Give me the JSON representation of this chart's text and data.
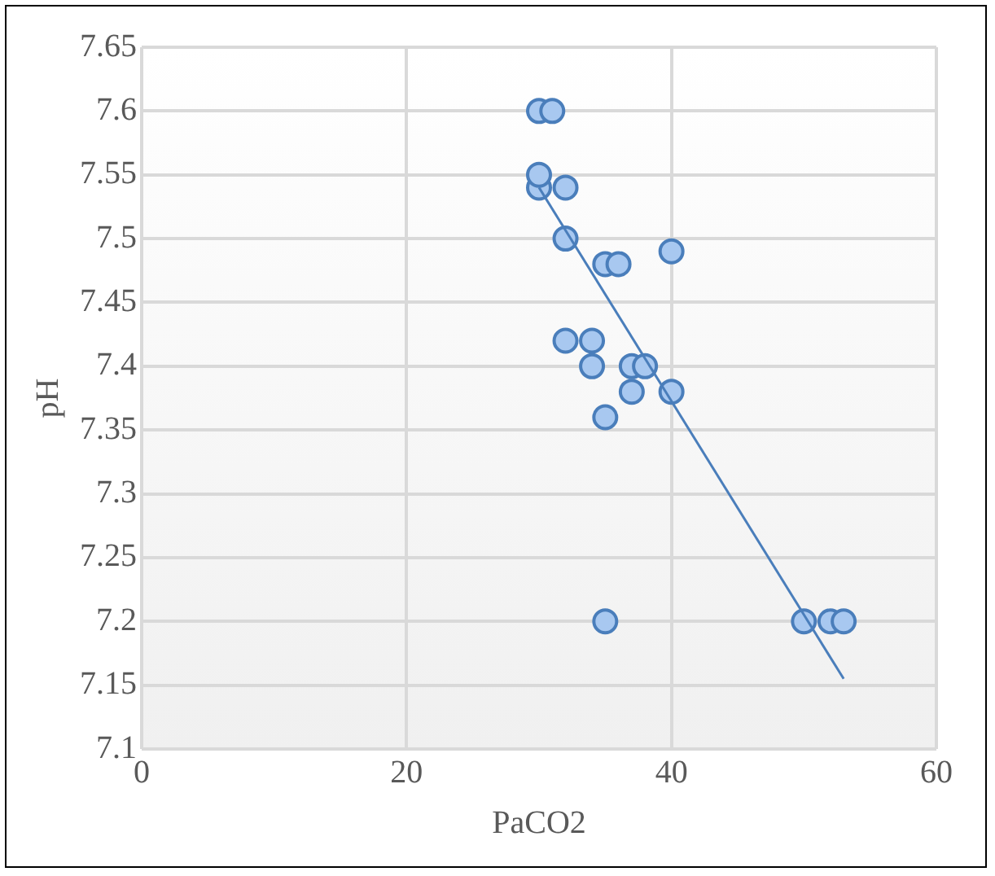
{
  "chart_data": {
    "type": "scatter",
    "xlabel": "PaCO2",
    "ylabel": "pH",
    "xlim": [
      0,
      60
    ],
    "xticks": [
      0,
      20,
      40,
      60
    ],
    "ylim": [
      7.1,
      7.65
    ],
    "yticks": [
      {
        "value": 7.1,
        "label": "7.1"
      },
      {
        "value": 7.15,
        "label": "7.15"
      },
      {
        "value": 7.2,
        "label": "7.2"
      },
      {
        "value": 7.25,
        "label": "7.25"
      },
      {
        "value": 7.3,
        "label": "7.3"
      },
      {
        "value": 7.35,
        "label": "7.35"
      },
      {
        "value": 7.4,
        "label": "7.4"
      },
      {
        "value": 7.45,
        "label": "7.45"
      },
      {
        "value": 7.5,
        "label": "7.5"
      },
      {
        "value": 7.55,
        "label": "7.55"
      },
      {
        "value": 7.6,
        "label": "7.6"
      },
      {
        "value": 7.65,
        "label": "7.65"
      }
    ],
    "grid": true,
    "series": [
      {
        "marker": "circle",
        "color": "#a8c8f0",
        "x": [
          30,
          31,
          30,
          30,
          32,
          32,
          35,
          36,
          40,
          32,
          34,
          34,
          37,
          38,
          37,
          40,
          35,
          35,
          50,
          52,
          53
        ],
        "values": [
          7.6,
          7.6,
          7.54,
          7.55,
          7.54,
          7.5,
          7.48,
          7.48,
          7.49,
          7.42,
          7.42,
          7.4,
          7.4,
          7.4,
          7.38,
          7.38,
          7.36,
          7.2,
          7.2,
          7.2,
          7.2
        ]
      },
      {
        "type": "line",
        "color": "#4a7ebb",
        "x": [
          30,
          53
        ],
        "values": [
          7.54,
          7.155
        ]
      }
    ]
  }
}
